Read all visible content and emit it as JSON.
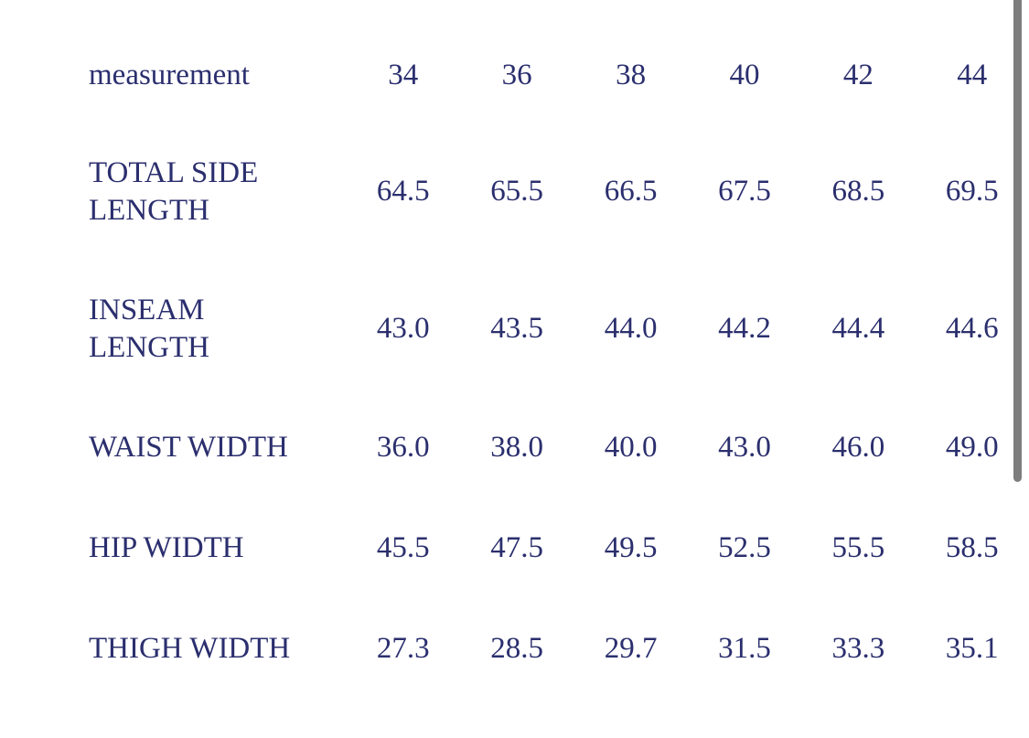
{
  "colors": {
    "text": "#2b2f6e",
    "background": "#ffffff",
    "scrollbar": "#7d7d7d"
  },
  "table": {
    "header": {
      "label": "measurement",
      "sizes": [
        "34",
        "36",
        "38",
        "40",
        "42",
        "44"
      ]
    },
    "rows": [
      {
        "label": "TOTAL SIDE LENGTH",
        "values": [
          "64.5",
          "65.5",
          "66.5",
          "67.5",
          "68.5",
          "69.5"
        ]
      },
      {
        "label": "INSEAM LENGTH",
        "values": [
          "43.0",
          "43.5",
          "44.0",
          "44.2",
          "44.4",
          "44.6"
        ]
      },
      {
        "label": "WAIST WIDTH",
        "values": [
          "36.0",
          "38.0",
          "40.0",
          "43.0",
          "46.0",
          "49.0"
        ]
      },
      {
        "label": "HIP WIDTH",
        "values": [
          "45.5",
          "47.5",
          "49.5",
          "52.5",
          "55.5",
          "58.5"
        ]
      },
      {
        "label": "THIGH WIDTH",
        "values": [
          "27.3",
          "28.5",
          "29.7",
          "31.5",
          "33.3",
          "35.1"
        ]
      }
    ]
  },
  "chart_data": {
    "type": "table",
    "title": "",
    "columns": [
      "measurement",
      "34",
      "36",
      "38",
      "40",
      "42",
      "44"
    ],
    "rows": [
      [
        "TOTAL SIDE LENGTH",
        64.5,
        65.5,
        66.5,
        67.5,
        68.5,
        69.5
      ],
      [
        "INSEAM LENGTH",
        43.0,
        43.5,
        44.0,
        44.2,
        44.4,
        44.6
      ],
      [
        "WAIST WIDTH",
        36.0,
        38.0,
        40.0,
        43.0,
        46.0,
        49.0
      ],
      [
        "HIP WIDTH",
        45.5,
        47.5,
        49.5,
        52.5,
        55.5,
        58.5
      ],
      [
        "THIGH WIDTH",
        27.3,
        28.5,
        29.7,
        31.5,
        33.3,
        35.1
      ]
    ]
  }
}
